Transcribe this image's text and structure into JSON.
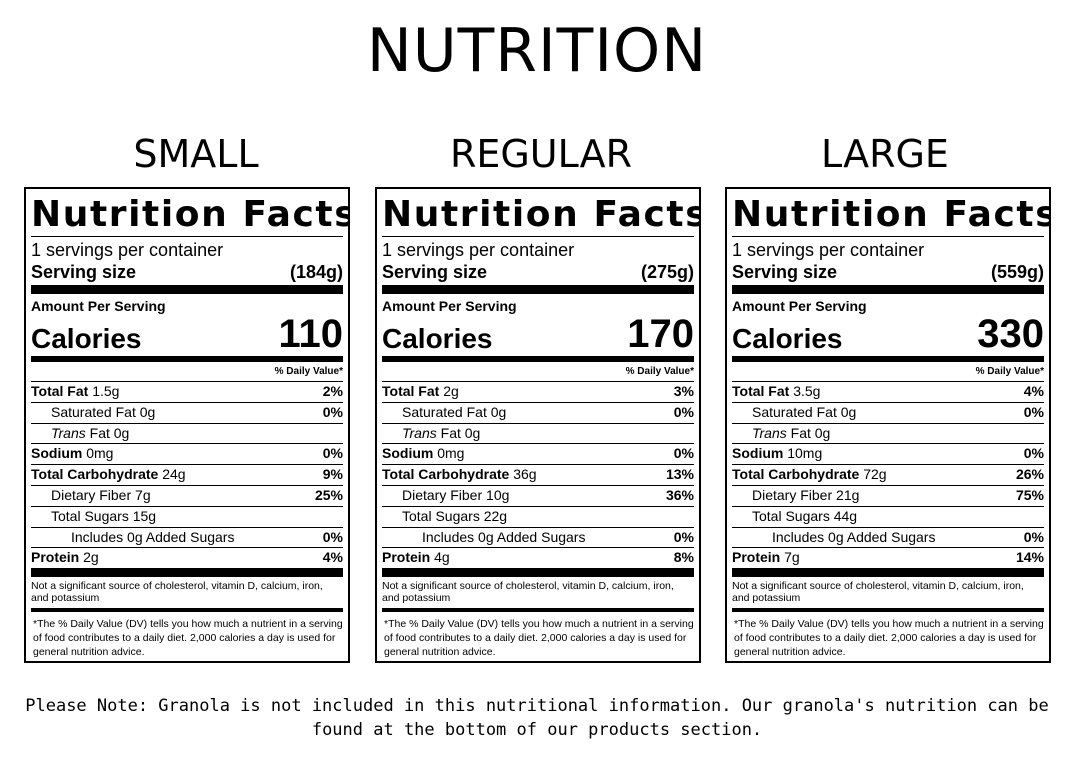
{
  "title": "NUTRITION",
  "labels": [
    {
      "size": "SMALL",
      "panel_title": "Nutrition Facts",
      "servings_per_container": "1 servings per container",
      "serving_size_label": "Serving size",
      "serving_size_value": "(184g)",
      "amount_per_serving": "Amount Per Serving",
      "calories_label": "Calories",
      "calories_value": "110",
      "dv_header": "% Daily Value*",
      "nutrients": [
        {
          "name": "Total Fat",
          "amount": "1.5g",
          "dv": "2%",
          "level": 0,
          "bold": true
        },
        {
          "name": "Saturated Fat",
          "amount": "0g",
          "dv": "0%",
          "level": 1,
          "bold": false
        },
        {
          "name": "Trans",
          "name_suffix": "Fat",
          "amount": "0g",
          "dv": "",
          "level": 1,
          "bold": false,
          "italic": true
        },
        {
          "name": "Sodium",
          "amount": "0mg",
          "dv": "0%",
          "level": 0,
          "bold": true
        },
        {
          "name": "Total Carbohydrate",
          "amount": "24g",
          "dv": "9%",
          "level": 0,
          "bold": true
        },
        {
          "name": "Dietary Fiber",
          "amount": "7g",
          "dv": "25%",
          "level": 1,
          "bold": false
        },
        {
          "name": "Total Sugars",
          "amount": "15g",
          "dv": "",
          "level": 1,
          "bold": false
        },
        {
          "name": "Includes",
          "amount": "0g Added Sugars",
          "dv": "0%",
          "level": 2,
          "bold": false
        },
        {
          "name": "Protein",
          "amount": "2g",
          "dv": "4%",
          "level": 0,
          "bold": true
        }
      ],
      "not_significant": "Not a significant source of cholesterol, vitamin D, calcium, iron, and potassium",
      "footnote": "*The % Daily Value (DV) tells you how much a nutrient in a serving of food contributes to a daily diet. 2,000 calories a day is used for general nutrition advice."
    },
    {
      "size": "REGULAR",
      "panel_title": "Nutrition Facts",
      "servings_per_container": "1 servings per container",
      "serving_size_label": "Serving size",
      "serving_size_value": "(275g)",
      "amount_per_serving": "Amount Per Serving",
      "calories_label": "Calories",
      "calories_value": "170",
      "dv_header": "% Daily Value*",
      "nutrients": [
        {
          "name": "Total Fat",
          "amount": "2g",
          "dv": "3%",
          "level": 0,
          "bold": true
        },
        {
          "name": "Saturated Fat",
          "amount": "0g",
          "dv": "0%",
          "level": 1,
          "bold": false
        },
        {
          "name": "Trans",
          "name_suffix": "Fat",
          "amount": "0g",
          "dv": "",
          "level": 1,
          "bold": false,
          "italic": true
        },
        {
          "name": "Sodium",
          "amount": "0mg",
          "dv": "0%",
          "level": 0,
          "bold": true
        },
        {
          "name": "Total Carbohydrate",
          "amount": "36g",
          "dv": "13%",
          "level": 0,
          "bold": true
        },
        {
          "name": "Dietary Fiber",
          "amount": "10g",
          "dv": "36%",
          "level": 1,
          "bold": false
        },
        {
          "name": "Total Sugars",
          "amount": "22g",
          "dv": "",
          "level": 1,
          "bold": false
        },
        {
          "name": "Includes",
          "amount": "0g Added Sugars",
          "dv": "0%",
          "level": 2,
          "bold": false
        },
        {
          "name": "Protein",
          "amount": "4g",
          "dv": "8%",
          "level": 0,
          "bold": true
        }
      ],
      "not_significant": "Not a significant source of cholesterol, vitamin D, calcium, iron, and potassium",
      "footnote": "*The % Daily Value (DV) tells you how much a nutrient in a serving of food contributes to a daily diet. 2,000 calories a day is used for general nutrition advice."
    },
    {
      "size": "LARGE",
      "panel_title": "Nutrition Facts",
      "servings_per_container": "1 servings per container",
      "serving_size_label": "Serving size",
      "serving_size_value": "(559g)",
      "amount_per_serving": "Amount Per Serving",
      "calories_label": "Calories",
      "calories_value": "330",
      "dv_header": "% Daily Value*",
      "nutrients": [
        {
          "name": "Total Fat",
          "amount": "3.5g",
          "dv": "4%",
          "level": 0,
          "bold": true
        },
        {
          "name": "Saturated Fat",
          "amount": "0g",
          "dv": "0%",
          "level": 1,
          "bold": false
        },
        {
          "name": "Trans",
          "name_suffix": "Fat",
          "amount": "0g",
          "dv": "",
          "level": 1,
          "bold": false,
          "italic": true
        },
        {
          "name": "Sodium",
          "amount": "10mg",
          "dv": "0%",
          "level": 0,
          "bold": true
        },
        {
          "name": "Total Carbohydrate",
          "amount": "72g",
          "dv": "26%",
          "level": 0,
          "bold": true
        },
        {
          "name": "Dietary Fiber",
          "amount": "21g",
          "dv": "75%",
          "level": 1,
          "bold": false
        },
        {
          "name": "Total Sugars",
          "amount": "44g",
          "dv": "",
          "level": 1,
          "bold": false
        },
        {
          "name": "Includes",
          "amount": "0g Added Sugars",
          "dv": "0%",
          "level": 2,
          "bold": false
        },
        {
          "name": "Protein",
          "amount": "7g",
          "dv": "14%",
          "level": 0,
          "bold": true
        }
      ],
      "not_significant": "Not a significant source of cholesterol, vitamin D, calcium, iron, and potassium",
      "footnote": "*The % Daily Value (DV) tells you how much a nutrient in a serving of food contributes to a daily diet. 2,000 calories a day is used for general nutrition advice."
    }
  ],
  "note": "Please Note: Granola is not included in this nutritional information. Our granola's nutrition can be found at the bottom of our products section."
}
